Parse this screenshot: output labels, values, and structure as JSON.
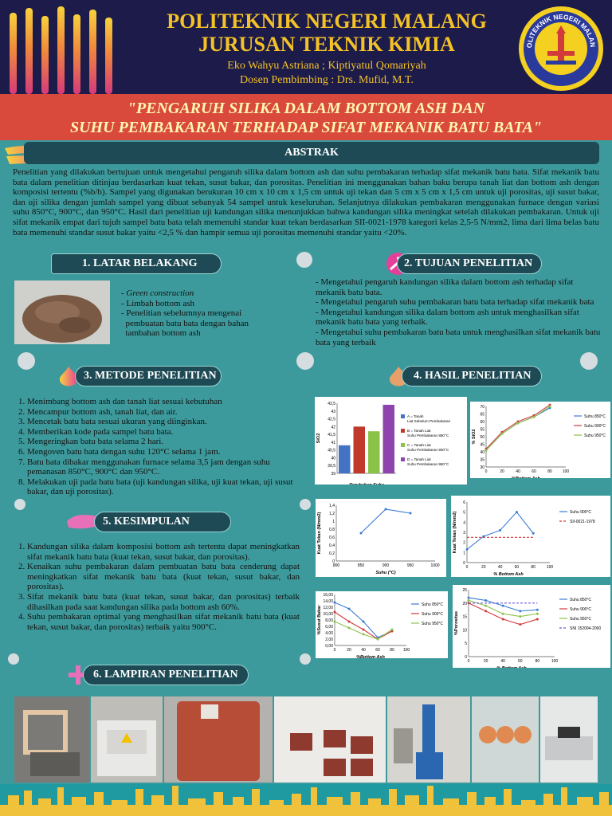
{
  "header": {
    "institution_line1": "POLITEKNIK NEGERI MALANG",
    "institution_line2": "JURUSAN TEKNIK KIMIA",
    "authors": "Eko Wahyu Astriana ; Kiptiyatul Qomariyah",
    "advisor": "Dosen Pembimbing : Drs. Mufid, M.T.",
    "logo_text": "POLITEKNIK NEGERI MALANG"
  },
  "title": {
    "line1": "\"PENGARUH SILIKA DALAM BOTTOM ASH DAN",
    "line2": "SUHU PEMBAKARAN TERHADAP SIFAT MEKANIK BATU BATA\""
  },
  "abstrak": {
    "heading": "ABSTRAK",
    "text": "Penelitian yang dilakukan bertujuan untuk mengetahui pengaruh silika dalam bottom ash dan suhu pembakaran terhadap sifat mekanik batu bata. Sifat mekanik batu bata dalam penelitian ditinjau berdasarkan kuat tekan, susut bakar, dan porositas. Penelitian ini menggunakan bahan baku berupa tanah liat dan bottom ash dengan komposisi tertentu (%b/b). Sampel yang digunakan berukuran 10 cm x 10 cm x 1,5 cm untuk uji tekan dan 5 cm x 5 cm x 1,5 cm untuk uji porositas, uji susut bakar, dan uji silika dengan jumlah sampel yang dibuat sebanyak 54 sampel untuk keseluruhan. Selanjutnya dilakukan pembakaran menggunakan furnace dengan variasi suhu 850°C, 900°C, dan 950°C. Hasil dari penelitian uji kandungan silika menunjukkan bahwa kandungan silika meningkat setelah dilakukan pembakaran. Untuk uji sifat mekanik empat dari tujuh sampel batu bata telah memenuhi standar kuat tekan berdasarkan SII-0021-1978 kategori kelas 2,5-5 N/mm2, lima dari lima belas batu bata memenuhi standar susut bakar yaitu <2,5 % dan hampir semua uji porositas memenuhi standar yaitu <20%."
  },
  "latar": {
    "heading": "1.  LATAR BELAKANG",
    "items": [
      "- Green construction",
      "- Limbah bottom ash",
      "- Penelitian sebelumnya mengenai",
      "  pembuatan batu bata dengan bahan",
      "  tambahan bottom ash"
    ]
  },
  "tujuan": {
    "heading": "2. TUJUAN PENELITIAN",
    "items": [
      "- Mengetahui pengaruh kandungan silika dalam bottom ash terhadap sifat mekanik batu bata.",
      "- Mengetahui pengaruh suhu pembakaran batu bata terhadap sifat mekanik bata",
      "- Mengetahui kandungan silika dalam bottom ash untuk menghasilkan sifat mekanik batu bata yang terbaik.",
      "- Mengetahui suhu pembakaran batu bata untuk menghasilkan sifat mekanik batu bata yang terbaik"
    ]
  },
  "metode": {
    "heading": "3. METODE PENELITIAN",
    "steps": [
      "Menimbang bottom ash dan tanah liat sesuai kebutuhan",
      "Mencampur bottom ash, tanah liat, dan air.",
      "Mencetak batu bata sesuai ukuran yang diinginkan.",
      "Memberikan kode pada sampel batu bata.",
      "Mengeringkan batu bata selama 2 hari.",
      "Mengoven batu bata dengan suhu 120°C selama 1 jam.",
      "Batu bata dibakar menggunakan furnace selama 3,5 jam dengan suhu pemanasan 850°C, 900°C dan 950°C.",
      "Melakukan uji pada batu bata (uji kandungan silika, uji kuat tekan, uji susut bakar, dan uji porositas)."
    ]
  },
  "hasil": {
    "heading": "4. HASIL PENELITIAN"
  },
  "kesimpulan": {
    "heading": "5. KESIMPULAN",
    "items": [
      "Kandungan silika dalam komposisi bottom ash tertentu dapat meningkatkan sifat mekanik batu bata (kuat tekan, susut bakar, dan porositas).",
      "Kenaikan suhu pembakaran dalam pembuatan batu bata cenderung dapat meningkatkan sifat mekanik batu bata (kuat tekan, susut bakar, dan porositas).",
      "Sifat mekanik batu bata (kuat tekan, susut bakar, dan porositas) terbaik dihasilkan pada saat kandungan silika pada bottom ash 60%.",
      "Suhu pembakaran optimal yang menghasilkan sifat mekanik batu bata (kuat tekan, susut bakar, dan porositas) terbaik yaitu 900°C."
    ]
  },
  "lampiran": {
    "heading": "6. LAMPIRAN PENELITIAN"
  },
  "chart_data": [
    {
      "type": "bar",
      "xlabel": "Perubahan Suhu",
      "ylabel": "SiO2",
      "ylim": [
        39,
        43.5
      ],
      "yticks": [
        "43,5",
        "43",
        "42,5",
        "42",
        "41,5",
        "41",
        "40,5",
        "40",
        "39,5",
        "39"
      ],
      "categories": [
        "A",
        "B",
        "C",
        "D"
      ],
      "values": [
        40.8,
        42.0,
        41.7,
        43.4
      ],
      "colors": [
        "#4472c4",
        "#c0392b",
        "#8bc34a",
        "#8e44ad"
      ],
      "legend": [
        "A = Tanah Liat Sebelum Pembakaran",
        "B = Tanah Liat Suhu Pembakaran 850°C",
        "C = Tanah Liat Suhu Pembakaran 900°C",
        "D = Tanah Liat Suhu Pembakaran 950°C"
      ]
    },
    {
      "type": "line",
      "xlabel": "%Bottom Ash",
      "ylabel": "% SiO2",
      "xticks": [
        "0",
        "20",
        "40",
        "60",
        "80",
        "100"
      ],
      "yticks": [
        "70",
        "65",
        "60",
        "55",
        "50",
        "45",
        "40",
        "35",
        "30"
      ],
      "x": [
        0,
        20,
        40,
        60,
        80
      ],
      "series": [
        {
          "name": "Suhu 850°C",
          "color": "#3b7bd4",
          "values": [
            41,
            52,
            59,
            63,
            69
          ]
        },
        {
          "name": "Suhu 900°C",
          "color": "#d23b3b",
          "values": [
            42,
            53,
            60,
            64,
            71
          ]
        },
        {
          "name": "Suhu 950°C",
          "color": "#8bc34a",
          "values": [
            41,
            52,
            59,
            63,
            70
          ]
        }
      ]
    },
    {
      "type": "line",
      "xlabel": "Suhu  (°C)",
      "ylabel": "Kuat Tekan (N/mm2)",
      "xticks": [
        "800",
        "850",
        "900",
        "950",
        "1000"
      ],
      "yticks": [
        "1,4",
        "1,2",
        "1",
        "0,8",
        "0,6",
        "0,4",
        "0,2",
        "0"
      ],
      "x": [
        850,
        900,
        950
      ],
      "series": [
        {
          "name": "",
          "color": "#3b7bd4",
          "values": [
            0.7,
            1.3,
            1.2
          ]
        }
      ]
    },
    {
      "type": "line",
      "xlabel": "% Bottom Ash",
      "ylabel": "Kuat Tekan (N/mm2)",
      "xticks": [
        "0",
        "20",
        "40",
        "60",
        "80",
        "100"
      ],
      "yticks": [
        "6",
        "5",
        "4",
        "3",
        "2",
        "1",
        "0"
      ],
      "x": [
        0,
        20,
        40,
        60,
        80
      ],
      "series": [
        {
          "name": "Suhu 900°C",
          "color": "#3b7bd4",
          "values": [
            1.3,
            2.6,
            3.2,
            5.0,
            2.9
          ]
        },
        {
          "name": "SII-0021-1978",
          "color": "#d23b3b",
          "values": [
            2.5,
            2.5,
            2.5,
            2.5,
            2.5
          ],
          "dashed": true
        }
      ]
    },
    {
      "type": "line",
      "xlabel": "%Bottom Ash",
      "ylabel": "%Susut Bakar",
      "xticks": [
        "0",
        "20",
        "40",
        "60",
        "80",
        "100"
      ],
      "yticks": [
        "16,00",
        "14,00",
        "12,00",
        "10,00",
        "8,00",
        "6,00",
        "4,00",
        "2,00",
        "0,00"
      ],
      "x": [
        0,
        20,
        40,
        60,
        80
      ],
      "series": [
        {
          "name": "Suhu 850°C",
          "color": "#3b7bd4",
          "values": [
            13.5,
            11.5,
            7.5,
            2.5,
            4.5
          ]
        },
        {
          "name": "Suhu 900°C",
          "color": "#d23b3b",
          "values": [
            10.5,
            7.5,
            5.0,
            2.0,
            4.5
          ]
        },
        {
          "name": "Suhu 950°C",
          "color": "#8bc34a",
          "values": [
            7.5,
            5.5,
            3.5,
            2.0,
            5.0
          ]
        }
      ]
    },
    {
      "type": "line",
      "xlabel": "% Bottom Ash",
      "ylabel": "%Porositas",
      "xticks": [
        "0",
        "20",
        "40",
        "60",
        "80",
        "100"
      ],
      "yticks": [
        "25",
        "20",
        "15",
        "10",
        "5",
        "0"
      ],
      "x": [
        0,
        20,
        40,
        60,
        80
      ],
      "series": [
        {
          "name": "Suhu 850°C",
          "color": "#3b7bd4",
          "values": [
            22,
            21,
            19,
            17,
            17.5
          ]
        },
        {
          "name": "Suhu 900°C",
          "color": "#d23b3b",
          "values": [
            20,
            17,
            14,
            12,
            14
          ]
        },
        {
          "name": "Suhu 950°C",
          "color": "#8bc34a",
          "values": [
            21,
            19,
            16,
            15,
            16
          ]
        },
        {
          "name": "SNI 152094-2000",
          "color": "#6a5acd",
          "values": [
            20,
            20,
            20,
            20,
            20
          ],
          "dashed": true
        }
      ]
    }
  ]
}
